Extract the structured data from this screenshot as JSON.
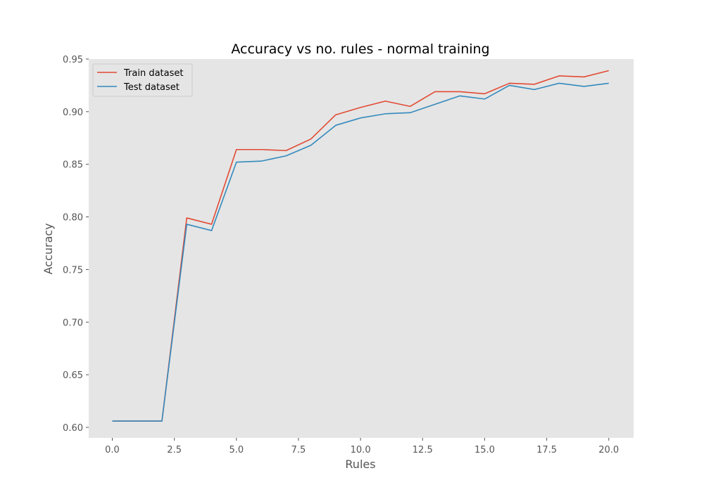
{
  "chart_data": {
    "type": "line",
    "title": "Accuracy vs no. rules - normal training",
    "xlabel": "Rules",
    "ylabel": "Accuracy",
    "xlim": [
      -0.95,
      21.0
    ],
    "ylim": [
      0.59,
      0.95
    ],
    "xticks": [
      0.0,
      2.5,
      5.0,
      7.5,
      10.0,
      12.5,
      15.0,
      17.5,
      20.0
    ],
    "xtick_labels": [
      "0.0",
      "2.5",
      "5.0",
      "7.5",
      "10.0",
      "12.5",
      "15.0",
      "17.5",
      "20.0"
    ],
    "yticks": [
      0.6,
      0.65,
      0.7,
      0.75,
      0.8,
      0.85,
      0.9,
      0.95
    ],
    "ytick_labels": [
      "0.60",
      "0.65",
      "0.70",
      "0.75",
      "0.80",
      "0.85",
      "0.90",
      "0.95"
    ],
    "grid": false,
    "legend_position": "top-left",
    "background": "#e5e5e5",
    "x": [
      0,
      1,
      2,
      3,
      4,
      5,
      6,
      7,
      8,
      9,
      10,
      11,
      12,
      13,
      14,
      15,
      16,
      17,
      18,
      19,
      20
    ],
    "series": [
      {
        "name": "Train dataset",
        "color": "#e24a33",
        "values": [
          0.606,
          0.606,
          0.606,
          0.799,
          0.793,
          0.864,
          0.864,
          0.863,
          0.874,
          0.897,
          0.904,
          0.91,
          0.905,
          0.919,
          0.919,
          0.917,
          0.927,
          0.926,
          0.934,
          0.933,
          0.939
        ]
      },
      {
        "name": "Test dataset",
        "color": "#348abd",
        "values": [
          0.606,
          0.606,
          0.606,
          0.793,
          0.787,
          0.852,
          0.853,
          0.858,
          0.868,
          0.887,
          0.894,
          0.898,
          0.899,
          0.907,
          0.915,
          0.912,
          0.925,
          0.921,
          0.927,
          0.924,
          0.927
        ]
      }
    ]
  }
}
